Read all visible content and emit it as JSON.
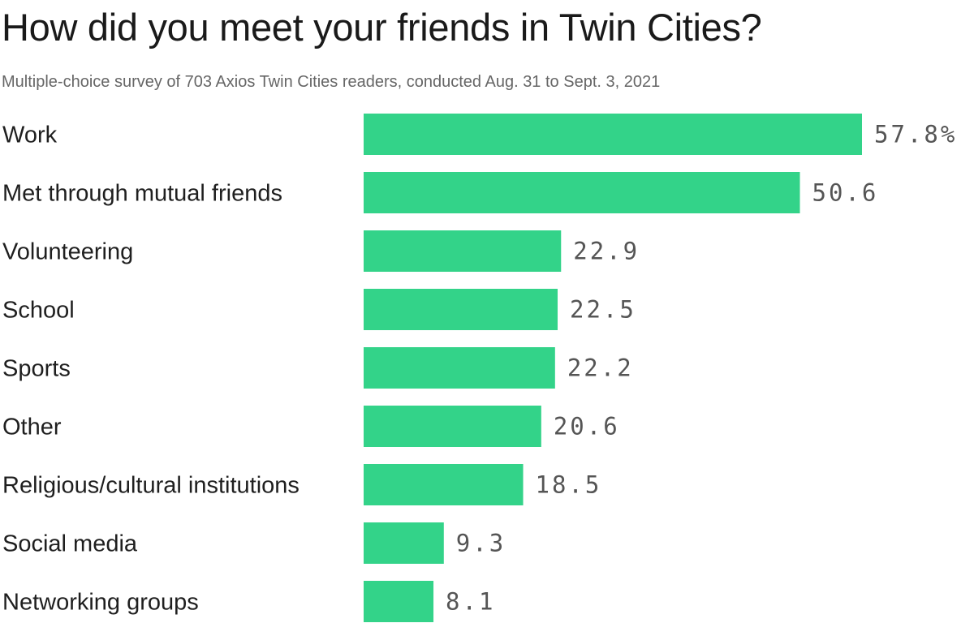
{
  "title": "How did you meet your friends in Twin Cities?",
  "subtitle": "Multiple-choice survey of 703 Axios Twin Cities readers, conducted Aug. 31 to Sept. 3, 2021",
  "colors": {
    "bar": "#33d389",
    "value_text": "#555555",
    "label_text": "#1f1f1f"
  },
  "chart_data": {
    "type": "bar",
    "orientation": "horizontal",
    "categories": [
      "Work",
      "Met through mutual friends",
      "Volunteering",
      "School",
      "Sports",
      "Other",
      "Religious/cultural institutions",
      "Social media",
      "Networking groups"
    ],
    "values": [
      57.8,
      50.6,
      22.9,
      22.5,
      22.2,
      20.6,
      18.5,
      9.3,
      8.1
    ],
    "value_labels": [
      "57.8%",
      "50.6",
      "22.9",
      "22.5",
      "22.2",
      "20.6",
      "18.5",
      "9.3",
      "8.1"
    ],
    "xlim": [
      0,
      57.8
    ],
    "grid": false,
    "legend": "none"
  }
}
